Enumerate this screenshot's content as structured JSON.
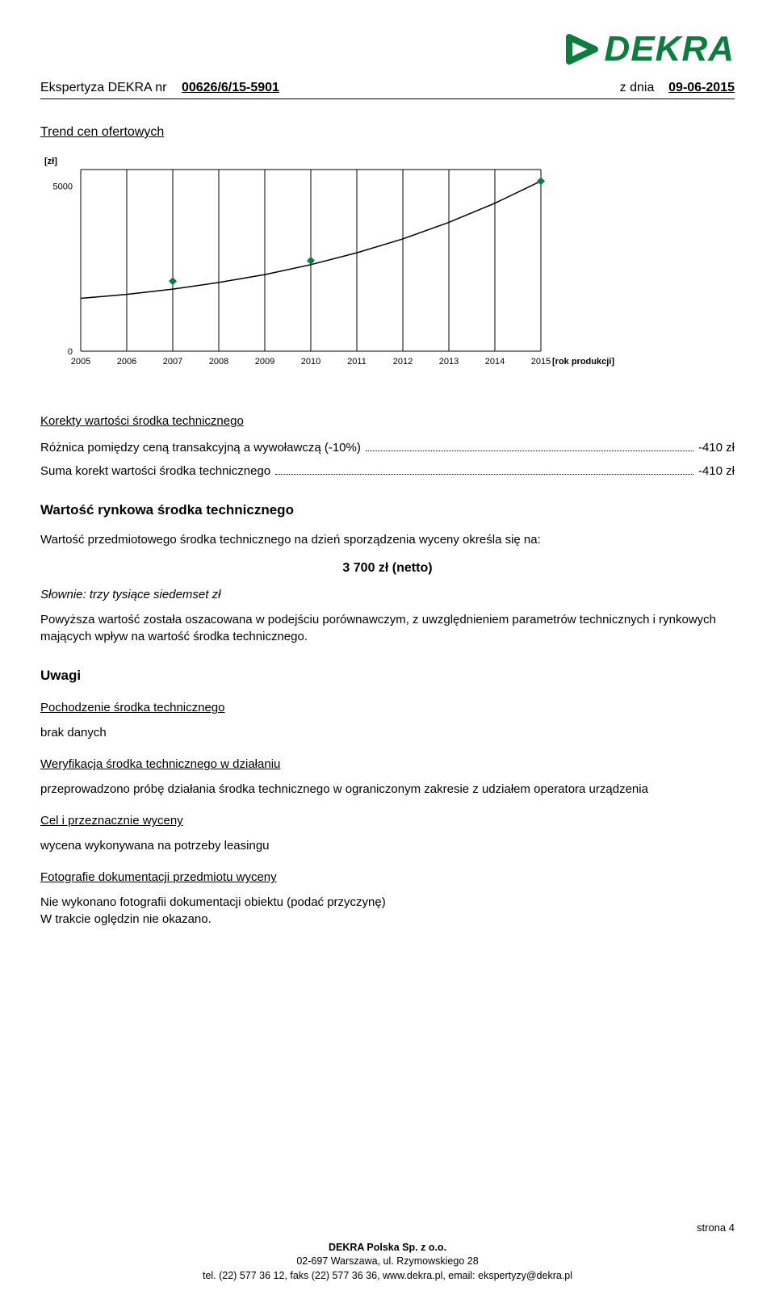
{
  "header": {
    "label": "Ekspertyza DEKRA nr",
    "number": "00626/6/15-5901",
    "date_label": "z dnia",
    "date": "09-06-2015",
    "logo_text": "DEKRA"
  },
  "trend": {
    "title": "Trend cen ofertowych",
    "chart": {
      "type": "line",
      "x_label": "[rok produkcji]",
      "y_label": "[zł]",
      "x_ticks": [
        "2005",
        "2006",
        "2007",
        "2008",
        "2009",
        "2010",
        "2011",
        "2012",
        "2013",
        "2014",
        "2015"
      ],
      "y_ticks": [
        "0",
        "5000"
      ],
      "ylim": [
        0,
        5500
      ],
      "line_color": "#000000",
      "grid_color": "#000000",
      "marker_color": "#0b7d3e",
      "marker_shape": "diamond",
      "text_color": "#000000",
      "font_size": 11,
      "background": "#ffffff",
      "curve_points": [
        {
          "x": 2005,
          "y": 1600
        },
        {
          "x": 2006,
          "y": 1720
        },
        {
          "x": 2007,
          "y": 1880
        },
        {
          "x": 2008,
          "y": 2080
        },
        {
          "x": 2009,
          "y": 2320
        },
        {
          "x": 2010,
          "y": 2620
        },
        {
          "x": 2011,
          "y": 2980
        },
        {
          "x": 2012,
          "y": 3400
        },
        {
          "x": 2013,
          "y": 3900
        },
        {
          "x": 2014,
          "y": 4480
        },
        {
          "x": 2015,
          "y": 5150
        }
      ],
      "markers": [
        {
          "x": 2007,
          "y": 2120
        },
        {
          "x": 2010,
          "y": 2740
        },
        {
          "x": 2015,
          "y": 5150
        }
      ]
    }
  },
  "corrections": {
    "title": "Korekty wartości środka technicznego",
    "rows": [
      {
        "label": "Różnica pomiędzy ceną transakcyjną a wywoławczą (-10%)",
        "value": "-410 zł"
      },
      {
        "label": "Suma korekt wartości środka technicznego",
        "value": "-410 zł"
      }
    ]
  },
  "market_value": {
    "title": "Wartość rynkowa środka technicznego",
    "intro": "Wartość przedmiotowego środka technicznego na dzień sporządzenia wyceny określa się na:",
    "value": "3 700 zł (netto)",
    "in_words_label": "Słownie:",
    "in_words": "trzy tysiące siedemset zł",
    "note": "Powyższa wartość została oszacowana w podejściu porównawczym, z uwzględnieniem parametrów technicznych i rynkowych mających wpływ na wartość środka technicznego."
  },
  "remarks": {
    "title": "Uwagi",
    "origin_title": "Pochodzenie środka technicznego",
    "origin_body": "brak danych",
    "verify_title": "Weryfikacja środka technicznego w działaniu",
    "verify_body": "przeprowadzono próbę działania środka technicznego w ograniczonym zakresie z udziałem operatora urządzenia",
    "purpose_title": "Cel i przeznacznie wyceny",
    "purpose_body": "wycena wykonywana na potrzeby leasingu",
    "photos_title": "Fotografie dokumentacji przedmiotu wyceny",
    "photos_body1": "Nie wykonano fotografii dokumentacji obiektu (podać przyczynę)",
    "photos_body2": "W trakcie oględzin nie okazano."
  },
  "footer": {
    "page": "strona 4",
    "line1": "DEKRA Polska Sp. z o.o.",
    "line2": "02-697 Warszawa, ul. Rzymowskiego 28",
    "line3": "tel. (22) 577 36 12, faks (22) 577 36 36, www.dekra.pl, email: ekspertyzy@dekra.pl"
  }
}
